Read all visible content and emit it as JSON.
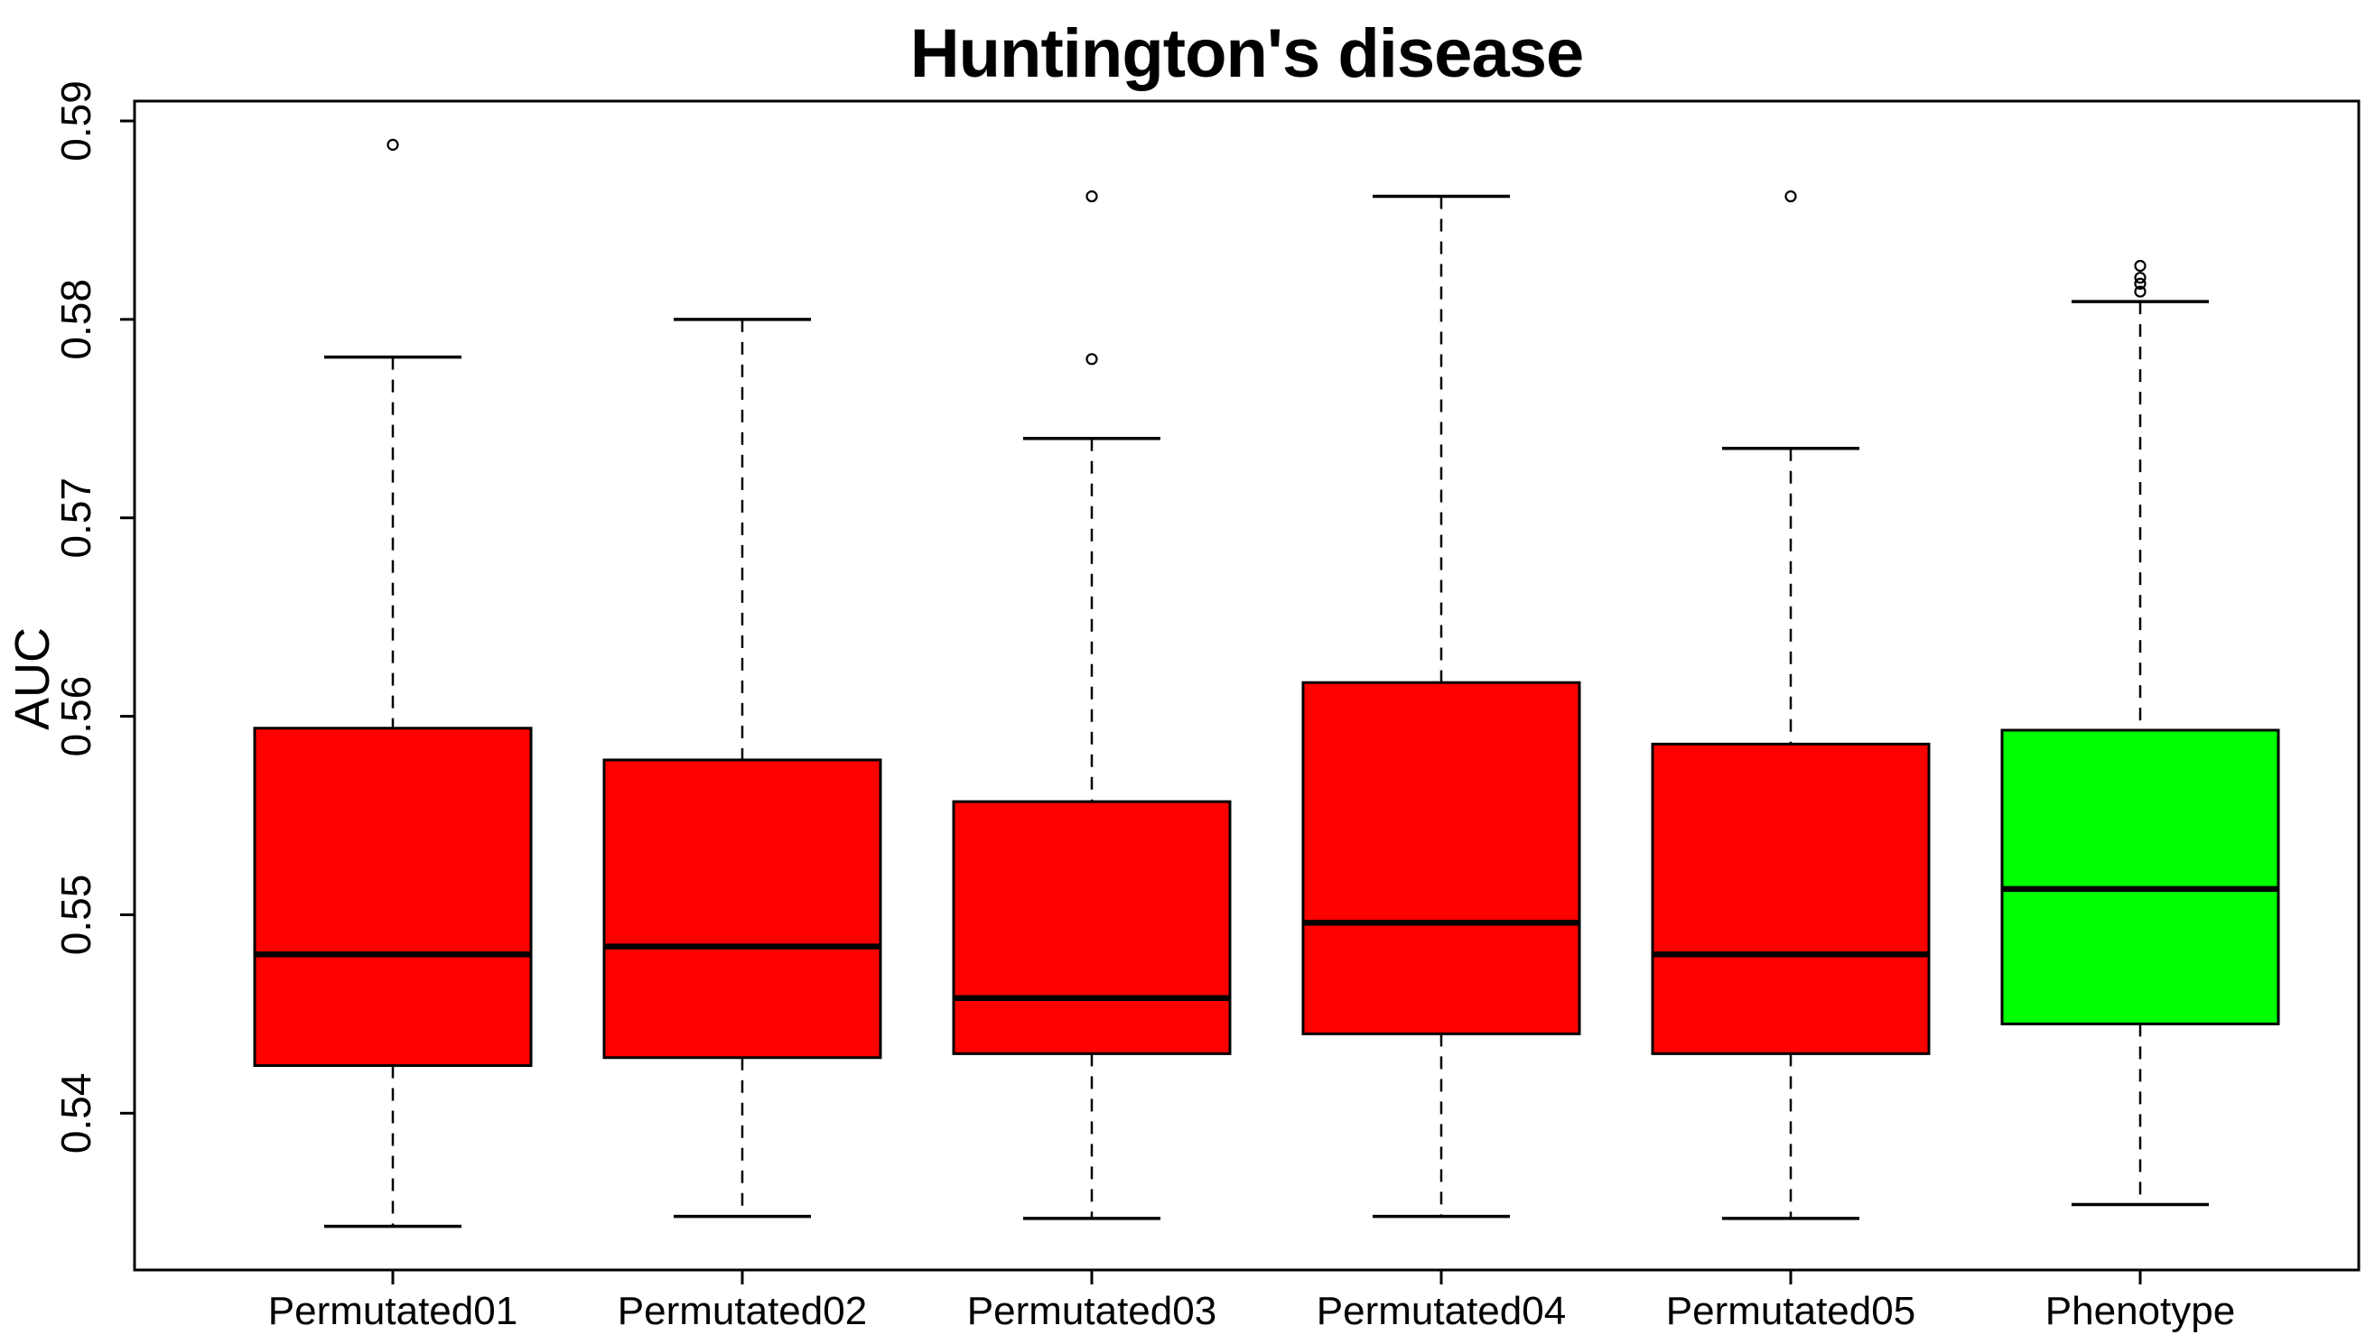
{
  "chart_data": {
    "type": "boxplot",
    "title": "Huntington's disease",
    "xlabel": "",
    "ylabel": "AUC",
    "ylim": [
      0.5321,
      0.591
    ],
    "y_ticks": [
      0.54,
      0.55,
      0.56,
      0.57,
      0.58,
      0.59
    ],
    "y_tick_decimals": 2,
    "grid": false,
    "legend": "none",
    "categories": [
      "Permutated01",
      "Permutated02",
      "Permutated03",
      "Permutated04",
      "Permutated05",
      "Phenotype"
    ],
    "series": [
      {
        "name": "Permutated01",
        "color": "#FF0000",
        "whisker_low": 0.5343,
        "q1": 0.5424,
        "median": 0.548,
        "q3": 0.5594,
        "whisker_high": 0.5781,
        "outliers": [
          0.5888
        ]
      },
      {
        "name": "Permutated02",
        "color": "#FF0000",
        "whisker_low": 0.5348,
        "q1": 0.5428,
        "median": 0.5484,
        "q3": 0.5578,
        "whisker_high": 0.58,
        "outliers": []
      },
      {
        "name": "Permutated03",
        "color": "#FF0000",
        "whisker_low": 0.5347,
        "q1": 0.543,
        "median": 0.5458,
        "q3": 0.5557,
        "whisker_high": 0.574,
        "outliers": [
          0.5862,
          0.578
        ]
      },
      {
        "name": "Permutated04",
        "color": "#FF0000",
        "whisker_low": 0.5348,
        "q1": 0.544,
        "median": 0.5496,
        "q3": 0.5617,
        "whisker_high": 0.5862,
        "outliers": []
      },
      {
        "name": "Permutated05",
        "color": "#FF0000",
        "whisker_low": 0.5347,
        "q1": 0.543,
        "median": 0.548,
        "q3": 0.5586,
        "whisker_high": 0.5735,
        "outliers": [
          0.5862
        ]
      },
      {
        "name": "Phenotype",
        "color": "#00FF00",
        "whisker_low": 0.5354,
        "q1": 0.5445,
        "median": 0.5513,
        "q3": 0.5593,
        "whisker_high": 0.5809,
        "outliers": [
          0.5827,
          0.5821,
          0.5818,
          0.5814
        ]
      }
    ],
    "colors": {
      "permutated_box": "#FF0000",
      "phenotype_box": "#00FF00",
      "axis": "#000000",
      "background": "#FFFFFF"
    }
  }
}
